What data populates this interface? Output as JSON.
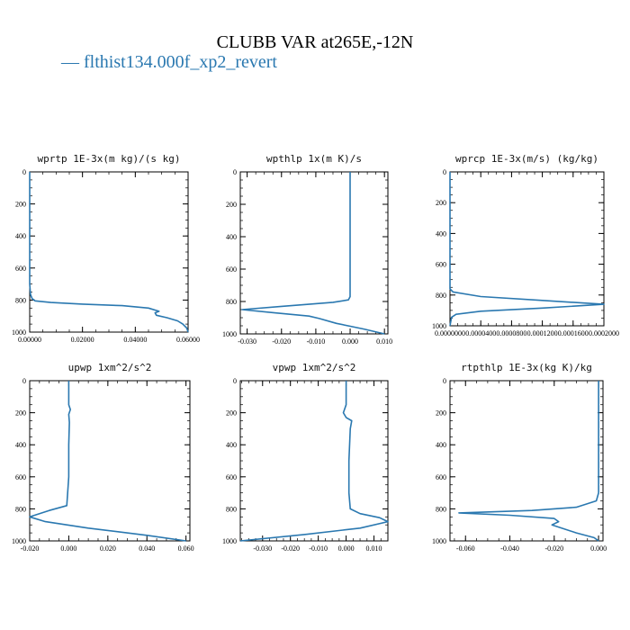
{
  "title": "CLUBB VAR at265E,-12N",
  "legend": {
    "label": "— flthist134.000f_xp2_revert",
    "color": "#2a78b0"
  },
  "chart_data": [
    {
      "type": "line",
      "title": "wprtp  1E-3x(m kg)/(s kg)",
      "xlim": [
        0,
        0.06
      ],
      "ylim": [
        1000,
        0
      ],
      "xticks": [
        0,
        0.02,
        0.04,
        0.06
      ],
      "xtick_labels": [
        "0.00000",
        "0.02000",
        "0.04000",
        "0.06000"
      ],
      "yticks": [
        0,
        200,
        400,
        600,
        800,
        1000
      ],
      "ytick_labels": [
        "0",
        "200",
        "400",
        "600",
        "800",
        "1000"
      ],
      "series": [
        {
          "x": [
            0,
            0,
            0,
            0.0003,
            0.0009,
            0.002,
            0.008,
            0.02,
            0.035,
            0.045,
            0.049,
            0.0475,
            0.048,
            0.052,
            0.056,
            0.058,
            0.0595,
            0.06
          ],
          "y": [
            0,
            400,
            700,
            765,
            790,
            805,
            815,
            825,
            835,
            850,
            870,
            880,
            895,
            910,
            930,
            950,
            975,
            1000
          ]
        }
      ]
    },
    {
      "type": "line",
      "title": "wpthlp  1x(m K)/s",
      "xlim": [
        -0.032,
        0.011
      ],
      "ylim": [
        1000,
        0
      ],
      "xticks": [
        -0.03,
        -0.02,
        -0.01,
        0,
        0.01
      ],
      "xtick_labels": [
        "-0.030",
        "-0.020",
        "-0.010",
        "0.000",
        "0.010"
      ],
      "yticks": [
        0,
        200,
        400,
        600,
        800,
        1000
      ],
      "ytick_labels": [
        "0",
        "200",
        "400",
        "600",
        "800",
        "1000"
      ],
      "series": [
        {
          "x": [
            0,
            0,
            0,
            0,
            0,
            0,
            -0.0005,
            -0.005,
            -0.02,
            -0.0315,
            -0.022,
            -0.012,
            -0.009,
            -0.004,
            0.004,
            0.01
          ],
          "y": [
            0,
            200,
            240,
            400,
            600,
            770,
            790,
            805,
            830,
            850,
            870,
            890,
            905,
            935,
            970,
            1000
          ]
        }
      ]
    },
    {
      "type": "line",
      "title": "wprcp  1E-3x(m/s) (kg/kg)",
      "xlim": [
        0,
        0.0002
      ],
      "ylim": [
        1000,
        0
      ],
      "xticks": [
        0,
        4e-05,
        8e-05,
        0.00012,
        0.00016,
        0.0002
      ],
      "xtick_labels": [
        "0.0000000",
        "0.0000400",
        "0.0000800",
        "0.0001200",
        "0.0001600",
        "0.0002000"
      ],
      "yticks": [
        0,
        200,
        400,
        600,
        800,
        1000
      ],
      "ytick_labels": [
        "0",
        "200",
        "400",
        "600",
        "800",
        "1000"
      ],
      "series": [
        {
          "x": [
            0,
            0,
            4e-06,
            4e-05,
            0.00012,
            0.0002,
            0.00012,
            4e-05,
            8e-06,
            2e-06,
            0
          ],
          "y": [
            0,
            760,
            780,
            810,
            835,
            860,
            885,
            905,
            925,
            945,
            1000
          ]
        }
      ]
    },
    {
      "type": "line",
      "title": "upwp  1xm^2/s^2",
      "xlim": [
        -0.02,
        0.062
      ],
      "ylim": [
        1000,
        0
      ],
      "xticks": [
        -0.02,
        0,
        0.02,
        0.04,
        0.06
      ],
      "xtick_labels": [
        "-0.020",
        "0.000",
        "0.020",
        "0.040",
        "0.060"
      ],
      "yticks": [
        0,
        200,
        400,
        600,
        800,
        1000
      ],
      "ytick_labels": [
        "0",
        "200",
        "400",
        "600",
        "800",
        "1000"
      ],
      "series": [
        {
          "x": [
            0,
            0,
            0.0008,
            0,
            0.0003,
            0,
            0,
            -0.001,
            -0.01,
            -0.02,
            -0.012,
            0.01,
            0.04,
            0.06
          ],
          "y": [
            0,
            150,
            180,
            210,
            260,
            400,
            600,
            780,
            810,
            850,
            880,
            920,
            965,
            1000
          ]
        }
      ]
    },
    {
      "type": "line",
      "title": "vpwp  1xm^2/s^2",
      "xlim": [
        -0.038,
        0.015
      ],
      "ylim": [
        1000,
        0
      ],
      "xticks": [
        -0.03,
        -0.02,
        -0.01,
        0,
        0.01
      ],
      "xtick_labels": [
        "-0.030",
        "-0.020",
        "-0.010",
        "0.000",
        "0.010"
      ],
      "yticks": [
        0,
        200,
        400,
        600,
        800,
        1000
      ],
      "ytick_labels": [
        "0",
        "200",
        "400",
        "600",
        "800",
        "1000"
      ],
      "series": [
        {
          "x": [
            0,
            0,
            -0.001,
            0,
            0.002,
            0.0015,
            0.001,
            0.001,
            0.0015,
            0.005,
            0.012,
            0.015,
            0.005,
            -0.015,
            -0.038
          ],
          "y": [
            0,
            150,
            200,
            230,
            250,
            300,
            500,
            700,
            800,
            830,
            855,
            880,
            920,
            960,
            1000
          ]
        }
      ]
    },
    {
      "type": "line",
      "title": "rtpthlp  1E-3x(kg K)/kg",
      "xlim": [
        -0.067,
        0.002
      ],
      "ylim": [
        1000,
        0
      ],
      "xticks": [
        -0.06,
        -0.04,
        -0.02,
        0
      ],
      "xtick_labels": [
        "-0.060",
        "-0.040",
        "-0.020",
        "0.000"
      ],
      "yticks": [
        0,
        200,
        400,
        600,
        800,
        1000
      ],
      "ytick_labels": [
        "0",
        "200",
        "400",
        "600",
        "800",
        "1000"
      ],
      "series": [
        {
          "x": [
            0,
            0,
            0,
            -0.001,
            -0.01,
            -0.03,
            -0.063,
            -0.04,
            -0.02,
            -0.018,
            -0.021,
            -0.01,
            -0.002,
            0
          ],
          "y": [
            0,
            400,
            700,
            750,
            790,
            810,
            825,
            840,
            860,
            880,
            900,
            950,
            980,
            1000
          ]
        }
      ]
    }
  ]
}
